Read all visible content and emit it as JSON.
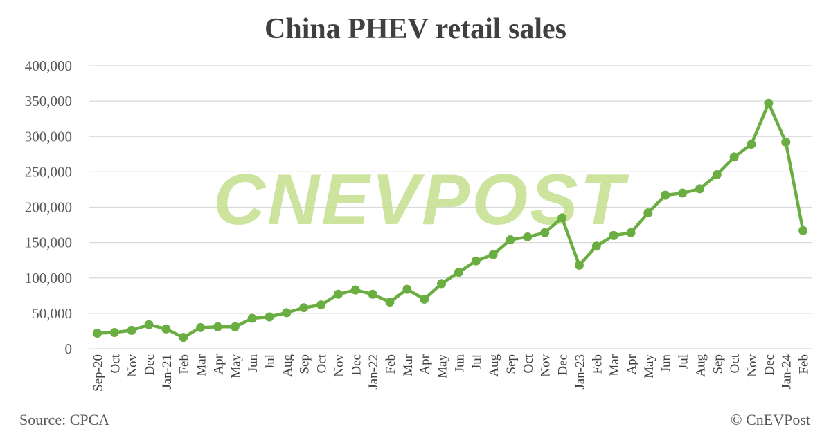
{
  "chart_data": {
    "type": "line",
    "title": "China PHEV retail sales",
    "xlabel": "",
    "ylabel": "",
    "ylim": [
      0,
      400000
    ],
    "yticks": [
      0,
      50000,
      100000,
      150000,
      200000,
      250000,
      300000,
      350000,
      400000
    ],
    "ytick_labels": [
      "0",
      "50,000",
      "100,000",
      "150,000",
      "200,000",
      "250,000",
      "300,000",
      "350,000",
      "400,000"
    ],
    "grid": true,
    "series_color": "#6aad40",
    "categories": [
      "Sep-20",
      "Oct",
      "Nov",
      "Dec",
      "Jan-21",
      "Feb",
      "Mar",
      "Apr",
      "May",
      "Jun",
      "Jul",
      "Aug",
      "Sep",
      "Oct",
      "Nov",
      "Dec",
      "Jan-22",
      "Feb",
      "Mar",
      "Apr",
      "May",
      "Jun",
      "Jul",
      "Aug",
      "Sep",
      "Oct",
      "Nov",
      "Dec",
      "Jan-23",
      "Feb",
      "Mar",
      "Apr",
      "May",
      "Jun",
      "Jul",
      "Aug",
      "Sep",
      "Oct",
      "Nov",
      "Dec",
      "Jan-24",
      "Feb"
    ],
    "series": [
      {
        "values": [
          22000,
          23000,
          26000,
          34000,
          28000,
          16000,
          30000,
          31000,
          31000,
          43000,
          45000,
          51000,
          58000,
          62000,
          77000,
          83000,
          77000,
          66000,
          84000,
          70000,
          92000,
          108000,
          124000,
          133000,
          154000,
          158000,
          164000,
          185000,
          118000,
          145000,
          160000,
          164000,
          192000,
          217000,
          220000,
          226000,
          246000,
          271000,
          289000,
          347000,
          292000,
          167000
        ]
      }
    ]
  },
  "watermark": "CNEVPOST",
  "footer": {
    "source": "Source:  CPCA",
    "credit": "© CnEVPost"
  }
}
